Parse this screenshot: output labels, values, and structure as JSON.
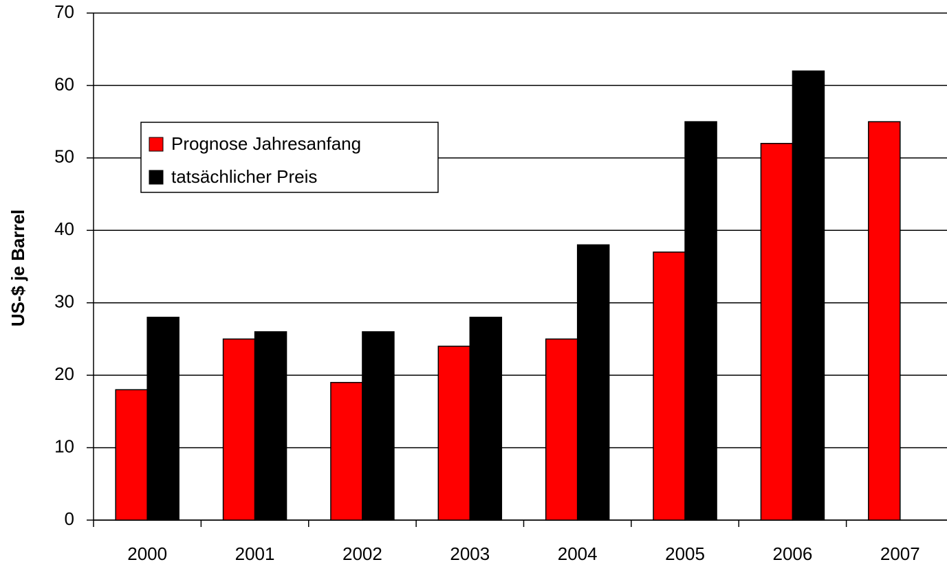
{
  "chart_data": {
    "type": "bar",
    "y_label": "US-$ je Barrel",
    "categories": [
      "2000",
      "2001",
      "2002",
      "2003",
      "2004",
      "2005",
      "2006",
      "2007"
    ],
    "series": [
      {
        "name": "Prognose Jahresanfang",
        "color": "#ff0000",
        "values": [
          18,
          25,
          19,
          24,
          25,
          37,
          52,
          55
        ]
      },
      {
        "name": "tatsächlicher Preis",
        "color": "#000000",
        "values": [
          28,
          26,
          26,
          28,
          38,
          55,
          62,
          null
        ]
      }
    ],
    "ylim": [
      0,
      70
    ],
    "yticks": [
      0,
      10,
      20,
      30,
      40,
      50,
      60,
      70
    ],
    "grid": true,
    "legend": "upper left"
  }
}
